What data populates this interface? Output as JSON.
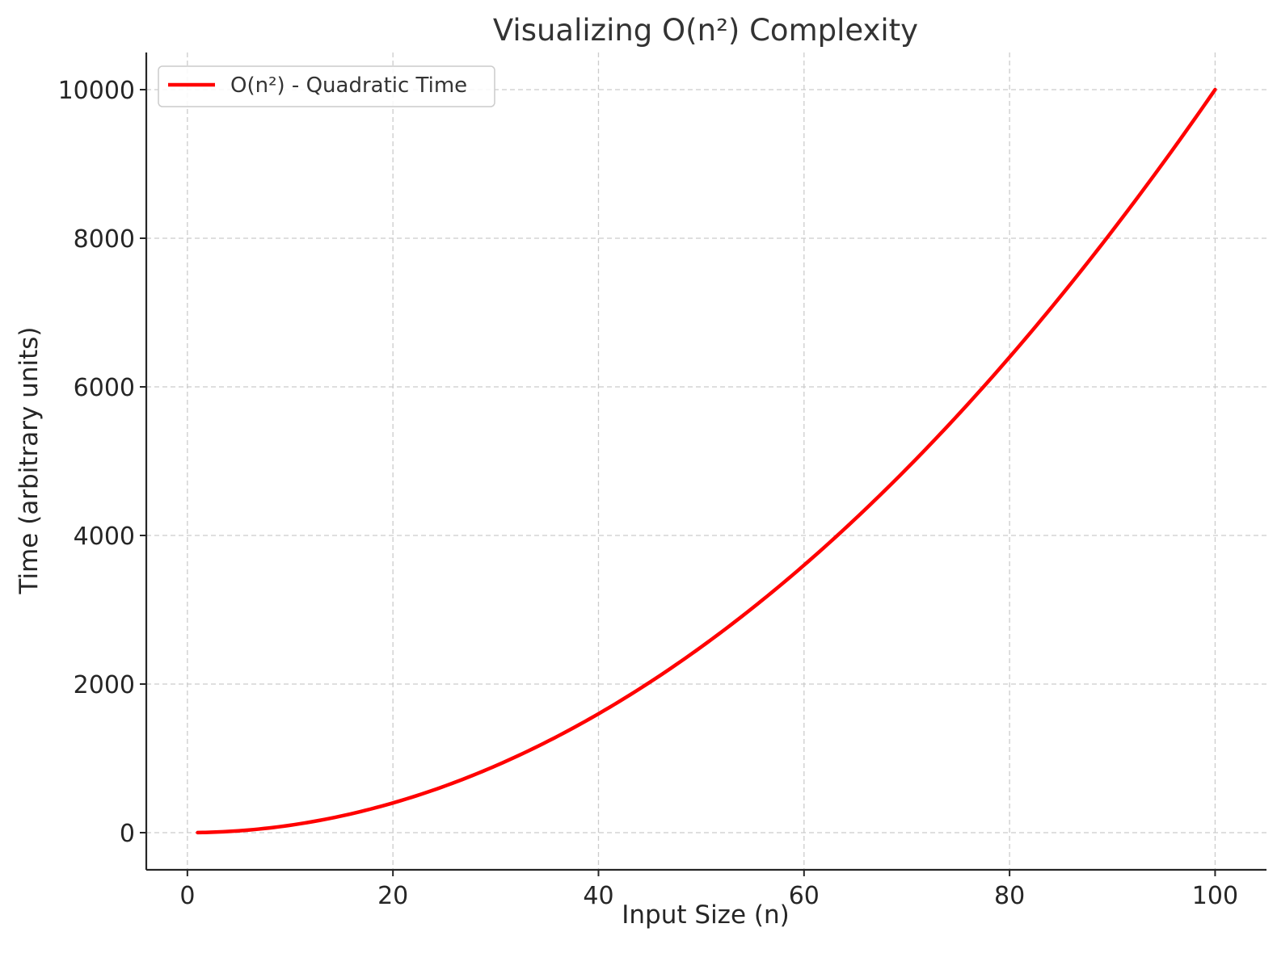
{
  "chart_data": {
    "type": "line",
    "title": "Visualizing O(n²) Complexity",
    "xlabel": "Input Size (n)",
    "ylabel": "Time (arbitrary units)",
    "xlim": [
      -4,
      105
    ],
    "ylim": [
      -500,
      10500
    ],
    "xticks": [
      0,
      20,
      40,
      60,
      80,
      100
    ],
    "yticks": [
      0,
      2000,
      4000,
      6000,
      8000,
      10000
    ],
    "grid": true,
    "legend": "top-left",
    "series": [
      {
        "name": "O(n²) - Quadratic Time",
        "color": "#ff0000",
        "function": "n^2",
        "x": [
          1,
          5,
          10,
          15,
          20,
          25,
          30,
          35,
          40,
          45,
          50,
          55,
          60,
          65,
          70,
          75,
          80,
          85,
          90,
          95,
          100
        ],
        "y": [
          1,
          25,
          100,
          225,
          400,
          625,
          900,
          1225,
          1600,
          2025,
          2500,
          3025,
          3600,
          4225,
          4900,
          5625,
          6400,
          7225,
          8100,
          9025,
          10000
        ]
      }
    ]
  }
}
